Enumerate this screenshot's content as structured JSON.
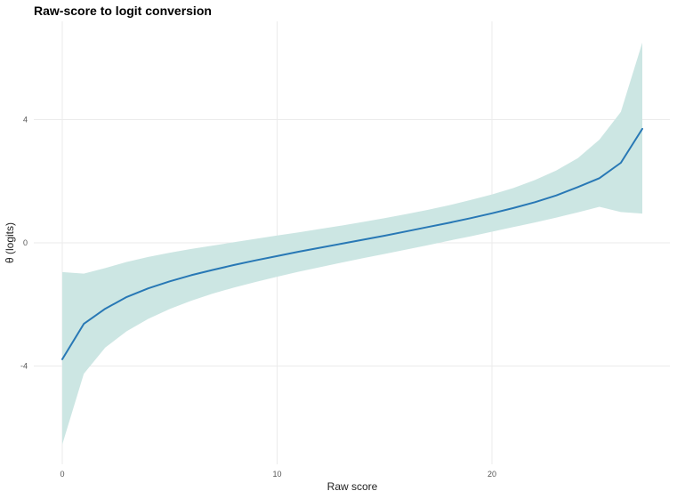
{
  "chart_data": {
    "type": "area",
    "title": "Raw-score to logit conversion",
    "xlabel": "Raw score",
    "ylabel": "θ (logits)",
    "xlim": [
      0,
      27
    ],
    "ylim": [
      -7.3,
      6.5
    ],
    "x_ticks": [
      0,
      10,
      20
    ],
    "y_ticks": [
      -4,
      0,
      4
    ],
    "x_tick_labels": [
      "0",
      "10",
      "20"
    ],
    "y_tick_labels": [
      "-4",
      "0",
      "4"
    ],
    "grid": true,
    "legend": "none",
    "colors": {
      "line": "#2878b5",
      "band": "#cce6e3"
    },
    "series": [
      {
        "type": "line",
        "x": [
          0,
          1,
          2,
          3,
          4,
          5,
          6,
          7,
          8,
          9,
          10,
          11,
          12,
          13,
          14,
          15,
          16,
          17,
          18,
          19,
          20,
          21,
          22,
          23,
          24,
          25,
          26,
          27
        ],
        "values": [
          -3.78,
          -2.63,
          -2.14,
          -1.76,
          -1.48,
          -1.25,
          -1.05,
          -0.88,
          -0.72,
          -0.57,
          -0.43,
          -0.29,
          -0.16,
          -0.03,
          0.1,
          0.23,
          0.37,
          0.51,
          0.65,
          0.8,
          0.96,
          1.13,
          1.32,
          1.54,
          1.81,
          2.1,
          2.6,
          3.7
        ]
      },
      {
        "type": "band",
        "x": [
          0,
          1,
          2,
          3,
          4,
          5,
          6,
          7,
          8,
          9,
          10,
          11,
          12,
          13,
          14,
          15,
          16,
          17,
          18,
          19,
          20,
          21,
          22,
          23,
          24,
          25,
          26,
          27
        ],
        "lower": [
          -6.55,
          -4.25,
          -3.4,
          -2.87,
          -2.47,
          -2.15,
          -1.88,
          -1.65,
          -1.45,
          -1.27,
          -1.1,
          -0.94,
          -0.79,
          -0.64,
          -0.5,
          -0.36,
          -0.22,
          -0.08,
          0.07,
          0.21,
          0.36,
          0.51,
          0.66,
          0.82,
          0.99,
          1.17,
          1.0,
          0.95
        ],
        "upper": [
          -0.95,
          -1.0,
          -0.82,
          -0.62,
          -0.46,
          -0.32,
          -0.2,
          -0.09,
          0.02,
          0.13,
          0.24,
          0.34,
          0.45,
          0.56,
          0.68,
          0.8,
          0.93,
          1.07,
          1.22,
          1.39,
          1.57,
          1.78,
          2.04,
          2.35,
          2.75,
          3.35,
          4.25,
          6.5
        ]
      }
    ]
  }
}
